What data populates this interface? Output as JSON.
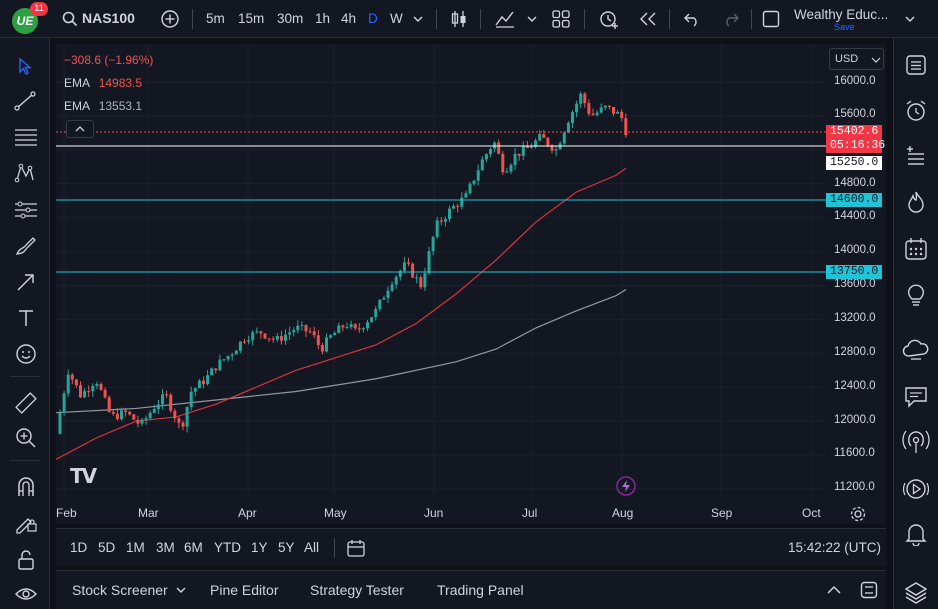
{
  "topbar": {
    "logo_text": "UE",
    "badge": "11",
    "symbol": "NAS100",
    "intervals": [
      "5m",
      "15m",
      "30m",
      "1h",
      "4h",
      "D",
      "W"
    ],
    "active_interval": "D",
    "layout_name": "Wealthy Educ...",
    "save_label": "Save"
  },
  "legend": {
    "change": "−308.6 (−1.96%)",
    "ema1_label": "EMA",
    "ema1_value": "14983.5",
    "ema2_label": "EMA",
    "ema2_value": "13553.1"
  },
  "currency": "USD",
  "price_axis": {
    "ticks": [
      "16000.0",
      "15600.0",
      "14800.0",
      "14400.0",
      "14000.0",
      "13600.0",
      "13200.0",
      "12800.0",
      "12400.0",
      "12000.0",
      "11600.0",
      "11200.0"
    ],
    "current_price": "15402.6",
    "countdown": "05:16:36",
    "level_15250": "15250.0",
    "level_14600": "14600.0",
    "level_13750": "13750.0"
  },
  "time_axis": [
    "Feb",
    "Mar",
    "Apr",
    "May",
    "Jun",
    "Jul",
    "Aug",
    "Sep",
    "Oct"
  ],
  "timeframes": {
    "ranges": [
      "1D",
      "5D",
      "1M",
      "3M",
      "6M",
      "YTD",
      "1Y",
      "5Y",
      "All"
    ],
    "clock": "15:42:22 (UTC)"
  },
  "bottom_panel": {
    "tabs": [
      "Stock Screener",
      "Pine Editor",
      "Strategy Tester",
      "Trading Panel"
    ]
  },
  "colors": {
    "up": "#26a69a",
    "down": "#ef5350",
    "ema_fast": "#d8343a",
    "ema_slow": "#9598a1",
    "cyan_line": "#22c3d6",
    "background": "#131722"
  },
  "watermark": "TV",
  "icons": {
    "left_toolbar": [
      "cursor-icon",
      "trendline-icon",
      "fib-icon",
      "pattern-icon",
      "measure-icon",
      "brush-icon",
      "arrow-icon",
      "text-icon",
      "emoji-icon",
      "ruler-icon",
      "zoom-icon",
      "magnet-icon",
      "lock-draw-icon",
      "lock-icon",
      "eye-icon"
    ],
    "right_toolbar": [
      "watchlist-icon",
      "alarm-icon",
      "add-list-icon",
      "hotlist-icon",
      "calendar-icon",
      "ideas-icon",
      "chat-cloud-icon",
      "chat-icon",
      "streams-icon",
      "play-icon",
      "bell-icon",
      "layers-icon"
    ]
  }
}
